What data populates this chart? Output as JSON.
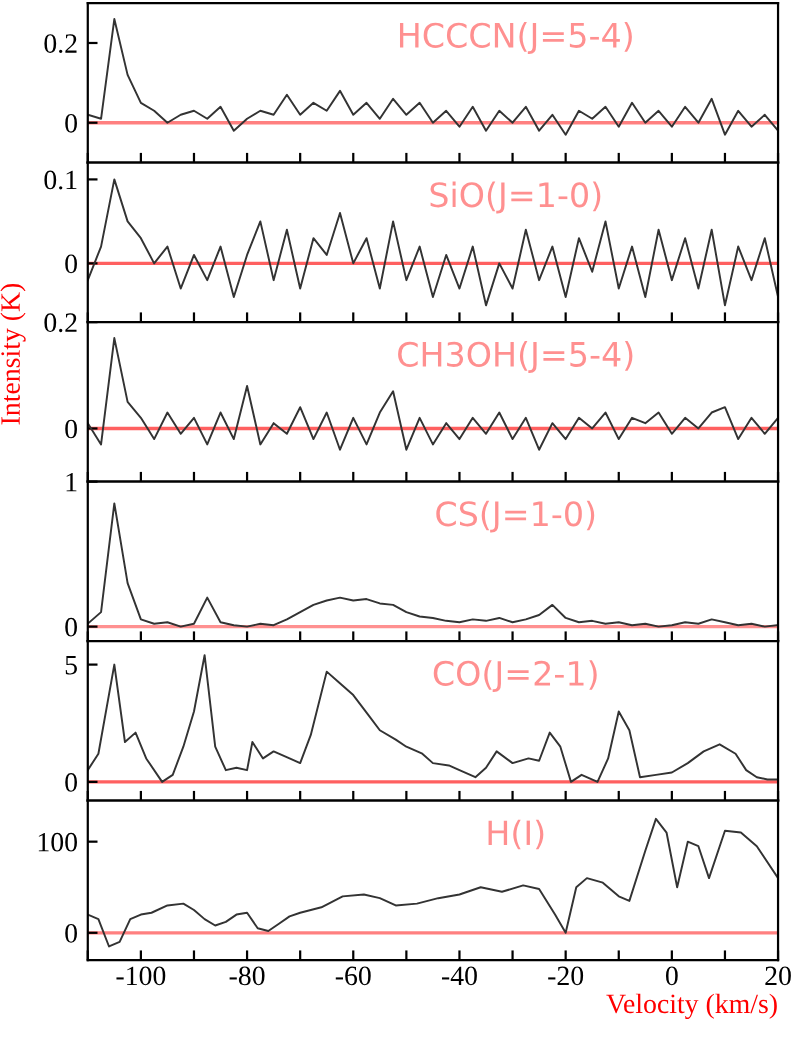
{
  "chart_data": [
    {
      "type": "line",
      "annotations": [
        "HCCCN(J=5-4)"
      ],
      "color": "#333333",
      "xlim": [
        -110,
        20
      ],
      "ylim": [
        -0.1,
        0.3
      ],
      "yticks": [
        0,
        0.2
      ],
      "tick_labels": "y",
      "xticks": [
        {
          "value": -110,
          "label": null
        },
        {
          "value": -100,
          "label": null
        },
        {
          "value": -90,
          "label": null
        },
        {
          "value": -80,
          "label": null
        },
        {
          "value": -70,
          "label": null
        },
        {
          "value": -60,
          "label": null
        },
        {
          "value": -50,
          "label": null
        },
        {
          "value": -40,
          "label": null
        },
        {
          "value": -30,
          "label": null
        },
        {
          "value": -20,
          "label": null
        },
        {
          "value": -10,
          "label": null
        },
        {
          "value": 0,
          "label": null
        },
        {
          "value": 10,
          "label": null
        },
        {
          "value": 20,
          "label": null
        }
      ],
      "ref_lines": [
        {
          "axis": "y",
          "value": 0,
          "color": "#ff8080"
        }
      ],
      "x": [
        -110,
        -107.5,
        -105,
        -102.5,
        -100,
        -97.5,
        -95,
        -92.5,
        -90,
        -87.5,
        -85,
        -82.5,
        -80,
        -77.5,
        -75,
        -72.5,
        -70,
        -67.5,
        -65,
        -62.5,
        -60,
        -57.5,
        -55,
        -52.5,
        -50,
        -47.5,
        -45,
        -42.5,
        -40,
        -37.5,
        -35,
        -32.5,
        -30,
        -27.5,
        -25,
        -22.5,
        -20,
        -17.5,
        -15,
        -12.5,
        -10,
        -7.5,
        -5,
        -2.5,
        0,
        2.5,
        5,
        7.5,
        10,
        12.5,
        15,
        17.5,
        20
      ],
      "values": [
        0.02,
        0.01,
        0.26,
        0.12,
        0.05,
        0.03,
        0.0,
        0.02,
        0.03,
        0.01,
        0.04,
        -0.02,
        0.01,
        0.03,
        0.02,
        0.07,
        0.02,
        0.05,
        0.03,
        0.08,
        0.02,
        0.05,
        0.01,
        0.06,
        0.02,
        0.05,
        0.0,
        0.03,
        -0.01,
        0.04,
        -0.02,
        0.03,
        0.0,
        0.04,
        -0.02,
        0.02,
        -0.03,
        0.03,
        0.01,
        0.04,
        -0.01,
        0.05,
        0.0,
        0.03,
        -0.01,
        0.04,
        0.0,
        0.06,
        -0.03,
        0.03,
        -0.01,
        0.02,
        -0.02
      ]
    },
    {
      "type": "line",
      "annotations": [
        "SiO(J=1-0)"
      ],
      "color": "#333333",
      "xlim": [
        -110,
        20
      ],
      "ylim": [
        -0.07,
        0.12
      ],
      "yticks": [
        0,
        0.1
      ],
      "tick_labels": "y",
      "xticks": [
        {
          "value": -110,
          "label": null
        },
        {
          "value": -100,
          "label": null
        },
        {
          "value": -90,
          "label": null
        },
        {
          "value": -80,
          "label": null
        },
        {
          "value": -70,
          "label": null
        },
        {
          "value": -60,
          "label": null
        },
        {
          "value": -50,
          "label": null
        },
        {
          "value": -40,
          "label": null
        },
        {
          "value": -30,
          "label": null
        },
        {
          "value": -20,
          "label": null
        },
        {
          "value": -10,
          "label": null
        },
        {
          "value": 0,
          "label": null
        },
        {
          "value": 10,
          "label": null
        },
        {
          "value": 20,
          "label": null
        }
      ],
      "ref_lines": [
        {
          "axis": "y",
          "value": 0,
          "color": "#ff6060"
        }
      ],
      "x": [
        -110,
        -107.5,
        -105,
        -102.5,
        -100,
        -97.5,
        -95,
        -92.5,
        -90,
        -87.5,
        -85,
        -82.5,
        -80,
        -77.5,
        -75,
        -72.5,
        -70,
        -67.5,
        -65,
        -62.5,
        -60,
        -57.5,
        -55,
        -52.5,
        -50,
        -47.5,
        -45,
        -42.5,
        -40,
        -37.5,
        -35,
        -32.5,
        -30,
        -27.5,
        -25,
        -22.5,
        -20,
        -17.5,
        -15,
        -12.5,
        -10,
        -7.5,
        -5,
        -2.5,
        0,
        2.5,
        5,
        7.5,
        10,
        12.5,
        15,
        17.5,
        20
      ],
      "values": [
        -0.02,
        0.02,
        0.1,
        0.05,
        0.03,
        0.0,
        0.02,
        -0.03,
        0.01,
        -0.02,
        0.02,
        -0.04,
        0.01,
        0.05,
        -0.02,
        0.04,
        -0.03,
        0.03,
        0.01,
        0.06,
        0.0,
        0.03,
        -0.03,
        0.05,
        -0.02,
        0.02,
        -0.04,
        0.01,
        -0.03,
        0.02,
        -0.05,
        0.0,
        -0.03,
        0.04,
        -0.02,
        0.02,
        -0.04,
        0.03,
        -0.01,
        0.05,
        -0.03,
        0.02,
        -0.04,
        0.04,
        -0.02,
        0.03,
        -0.03,
        0.04,
        -0.05,
        0.02,
        -0.02,
        0.03,
        -0.04
      ]
    },
    {
      "type": "line",
      "annotations": [
        "CH3OH(J=5-4)"
      ],
      "ylabel": "Intensity (K)",
      "color": "#333333",
      "xlim": [
        -110,
        20
      ],
      "ylim": [
        -0.1,
        0.2
      ],
      "yticks": [
        0,
        0.2
      ],
      "tick_labels": "y",
      "xticks": [
        {
          "value": -110,
          "label": null
        },
        {
          "value": -100,
          "label": null
        },
        {
          "value": -90,
          "label": null
        },
        {
          "value": -80,
          "label": null
        },
        {
          "value": -70,
          "label": null
        },
        {
          "value": -60,
          "label": null
        },
        {
          "value": -50,
          "label": null
        },
        {
          "value": -40,
          "label": null
        },
        {
          "value": -30,
          "label": null
        },
        {
          "value": -20,
          "label": null
        },
        {
          "value": -10,
          "label": null
        },
        {
          "value": 0,
          "label": null
        },
        {
          "value": 10,
          "label": null
        },
        {
          "value": 20,
          "label": null
        }
      ],
      "ref_lines": [
        {
          "axis": "y",
          "value": 0,
          "color": "#ff6060"
        }
      ],
      "x": [
        -110,
        -107.5,
        -105,
        -102.5,
        -100,
        -97.5,
        -95,
        -92.5,
        -90,
        -87.5,
        -85,
        -82.5,
        -80,
        -77.5,
        -75,
        -72.5,
        -70,
        -67.5,
        -65,
        -62.5,
        -60,
        -57.5,
        -55,
        -52.5,
        -50,
        -47.5,
        -45,
        -42.5,
        -40,
        -37.5,
        -35,
        -32.5,
        -30,
        -27.5,
        -25,
        -22.5,
        -20,
        -17.5,
        -15,
        -12.5,
        -10,
        -7.5,
        -5,
        -2.5,
        0,
        2.5,
        5,
        7.5,
        10,
        12.5,
        15,
        17.5,
        20
      ],
      "values": [
        0.01,
        -0.03,
        0.17,
        0.05,
        0.02,
        -0.02,
        0.03,
        -0.01,
        0.02,
        -0.03,
        0.03,
        -0.02,
        0.08,
        -0.03,
        0.01,
        -0.01,
        0.04,
        -0.02,
        0.03,
        -0.04,
        0.02,
        -0.03,
        0.03,
        0.07,
        -0.04,
        0.02,
        -0.03,
        0.01,
        -0.02,
        0.02,
        -0.01,
        0.03,
        -0.02,
        0.02,
        -0.04,
        0.01,
        -0.02,
        0.02,
        0.0,
        0.03,
        -0.02,
        0.02,
        0.01,
        0.03,
        -0.01,
        0.02,
        0.0,
        0.03,
        0.04,
        -0.02,
        0.02,
        -0.01,
        0.02
      ]
    },
    {
      "type": "line",
      "annotations": [
        "CS(J=1-0)"
      ],
      "color": "#333333",
      "xlim": [
        -110,
        20
      ],
      "ylim": [
        -0.1,
        1
      ],
      "yticks": [
        0,
        1
      ],
      "tick_labels": "y",
      "xticks": [
        {
          "value": -110,
          "label": null
        },
        {
          "value": -100,
          "label": null
        },
        {
          "value": -90,
          "label": null
        },
        {
          "value": -80,
          "label": null
        },
        {
          "value": -70,
          "label": null
        },
        {
          "value": -60,
          "label": null
        },
        {
          "value": -50,
          "label": null
        },
        {
          "value": -40,
          "label": null
        },
        {
          "value": -30,
          "label": null
        },
        {
          "value": -20,
          "label": null
        },
        {
          "value": -10,
          "label": null
        },
        {
          "value": 0,
          "label": null
        },
        {
          "value": 10,
          "label": null
        },
        {
          "value": 20,
          "label": null
        }
      ],
      "ref_lines": [
        {
          "axis": "y",
          "value": 0,
          "color": "#ff9090"
        }
      ],
      "x": [
        -110,
        -107.5,
        -105,
        -102.5,
        -100,
        -97.5,
        -95,
        -92.5,
        -90,
        -87.5,
        -85,
        -82.5,
        -80,
        -77.5,
        -75,
        -72.5,
        -70,
        -67.5,
        -65,
        -62.5,
        -60,
        -57.5,
        -55,
        -52.5,
        -50,
        -47.5,
        -45,
        -42.5,
        -40,
        -37.5,
        -35,
        -32.5,
        -30,
        -27.5,
        -25,
        -22.5,
        -20,
        -17.5,
        -15,
        -12.5,
        -10,
        -7.5,
        -5,
        -2.5,
        0,
        2.5,
        5,
        7.5,
        10,
        12.5,
        15,
        17.5,
        20
      ],
      "values": [
        0.02,
        0.1,
        0.85,
        0.3,
        0.05,
        0.02,
        0.03,
        0.0,
        0.02,
        0.2,
        0.03,
        0.01,
        0.0,
        0.02,
        0.01,
        0.05,
        0.1,
        0.15,
        0.18,
        0.2,
        0.18,
        0.19,
        0.16,
        0.15,
        0.1,
        0.07,
        0.06,
        0.04,
        0.03,
        0.05,
        0.04,
        0.06,
        0.03,
        0.05,
        0.08,
        0.15,
        0.06,
        0.03,
        0.04,
        0.02,
        0.03,
        0.01,
        0.02,
        0.0,
        0.01,
        0.03,
        0.02,
        0.05,
        0.03,
        0.01,
        0.02,
        0.0,
        0.01
      ]
    },
    {
      "type": "line",
      "annotations": [
        "CO(J=2-1)"
      ],
      "color": "#333333",
      "xlim": [
        -110,
        20
      ],
      "ylim": [
        -0.8,
        6
      ],
      "yticks": [
        0,
        5
      ],
      "tick_labels": "y",
      "xticks": [
        {
          "value": -110,
          "label": null
        },
        {
          "value": -100,
          "label": null
        },
        {
          "value": -90,
          "label": null
        },
        {
          "value": -80,
          "label": null
        },
        {
          "value": -70,
          "label": null
        },
        {
          "value": -60,
          "label": null
        },
        {
          "value": -50,
          "label": null
        },
        {
          "value": -40,
          "label": null
        },
        {
          "value": -30,
          "label": null
        },
        {
          "value": -20,
          "label": null
        },
        {
          "value": -10,
          "label": null
        },
        {
          "value": 0,
          "label": null
        },
        {
          "value": 10,
          "label": null
        },
        {
          "value": 20,
          "label": null
        }
      ],
      "ref_lines": [
        {
          "axis": "y",
          "value": 0,
          "color": "#ff6060"
        }
      ],
      "x": [
        -110,
        -108,
        -105,
        -103,
        -101,
        -99,
        -96,
        -94,
        -92,
        -90,
        -88,
        -86,
        -84,
        -82,
        -80,
        -79,
        -77,
        -75,
        -72,
        -70,
        -68,
        -65,
        -63,
        -60,
        -57,
        -55,
        -52,
        -50,
        -47,
        -45,
        -42,
        -40,
        -37,
        -35,
        -33,
        -30,
        -27,
        -25,
        -23,
        -21,
        -19,
        -17,
        -14,
        -12,
        -10,
        -8,
        -6,
        -3,
        0,
        3,
        6,
        9,
        12,
        14,
        16,
        18,
        20
      ],
      "values": [
        0.5,
        1.2,
        5.0,
        1.7,
        2.1,
        1.0,
        0.0,
        0.3,
        1.5,
        3.0,
        5.4,
        1.5,
        0.5,
        0.6,
        0.5,
        1.7,
        1.0,
        1.3,
        1.0,
        0.8,
        2.0,
        4.7,
        4.3,
        3.7,
        2.8,
        2.2,
        1.8,
        1.5,
        1.2,
        0.8,
        0.7,
        0.5,
        0.2,
        0.6,
        1.3,
        0.8,
        1.0,
        0.9,
        2.1,
        1.5,
        0.0,
        0.3,
        0.0,
        1.0,
        3.0,
        2.2,
        0.2,
        0.3,
        0.4,
        0.8,
        1.3,
        1.6,
        1.2,
        0.5,
        0.2,
        0.1,
        0.1
      ]
    },
    {
      "type": "line",
      "annotations": [
        "H(I)"
      ],
      "xlabel": "Velocity (km/s)",
      "color": "#333333",
      "xlim": [
        -110,
        20
      ],
      "ylim": [
        -30,
        145
      ],
      "yticks": [
        0,
        100
      ],
      "xticks": [
        {
          "value": -110,
          "label": null
        },
        -100,
        {
          "value": -90,
          "label": null
        },
        -80,
        {
          "value": -70,
          "label": null
        },
        -60,
        {
          "value": -50,
          "label": null
        },
        -40,
        {
          "value": -30,
          "label": null
        },
        -20,
        {
          "value": -10,
          "label": null
        },
        0,
        {
          "value": 10,
          "label": null
        },
        20
      ],
      "ref_lines": [
        {
          "axis": "y",
          "value": 0,
          "color": "#ff8080"
        }
      ],
      "x": [
        -110,
        -108,
        -106,
        -104,
        -102,
        -100,
        -98,
        -95,
        -92,
        -90,
        -88,
        -86,
        -84,
        -82,
        -80,
        -78,
        -76,
        -74,
        -72,
        -70,
        -66,
        -62,
        -58,
        -55,
        -52,
        -48,
        -44,
        -40,
        -36,
        -32,
        -28,
        -25,
        -22,
        -20,
        -18,
        -16,
        -13,
        -10,
        -8,
        -5,
        -3,
        -1,
        1,
        3,
        5,
        7,
        10,
        13,
        16,
        20
      ],
      "values": [
        20,
        15,
        -15,
        -10,
        15,
        20,
        22,
        30,
        32,
        25,
        15,
        8,
        12,
        20,
        22,
        5,
        2,
        10,
        18,
        22,
        28,
        40,
        42,
        38,
        30,
        32,
        38,
        42,
        50,
        45,
        52,
        48,
        20,
        0,
        50,
        60,
        55,
        40,
        35,
        90,
        125,
        110,
        50,
        100,
        95,
        60,
        112,
        110,
        95,
        60
      ]
    }
  ]
}
